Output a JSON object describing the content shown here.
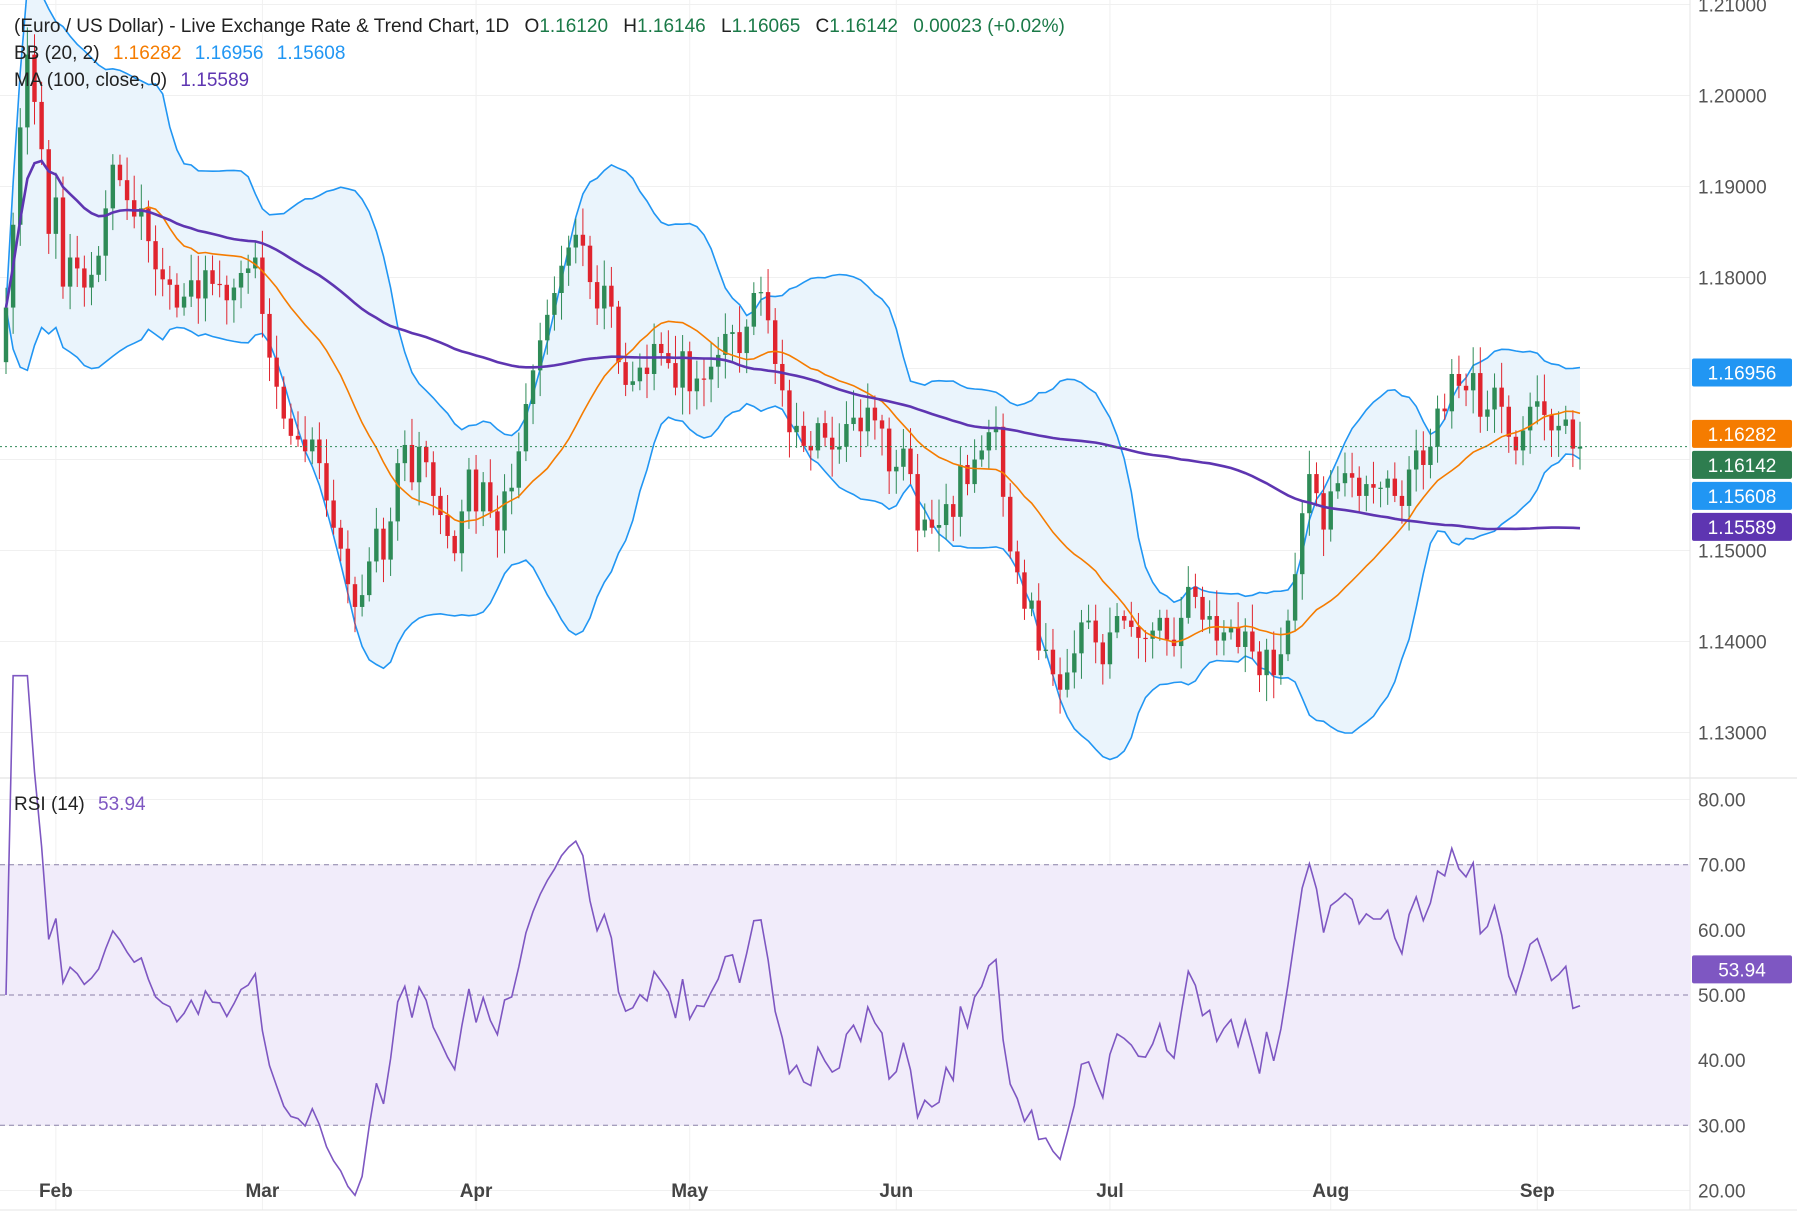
{
  "chart_data": {
    "type": "candlestick",
    "header": {
      "title": "(Euro / US Dollar) - Live Exchange Rate & Trend Chart, 1D",
      "o_label": "O",
      "o_value": "1.16120",
      "h_label": "H",
      "h_value": "1.16146",
      "l_label": "L",
      "l_value": "1.16065",
      "c_label": "C",
      "c_value": "1.16142",
      "change": "0.00023 (+0.02%)"
    },
    "bb_legend": {
      "label": "BB (20, 2)",
      "middle": "1.16282",
      "upper": "1.16956",
      "lower": "1.15608"
    },
    "ma_legend": {
      "label": "MA (100, close, 0)",
      "value": "1.15589"
    },
    "rsi_legend": {
      "label": "RSI (14)",
      "value": "53.94"
    },
    "price_ylim": [
      1.125,
      1.2105
    ],
    "price_ticks": [
      "1.21000",
      "1.20000",
      "1.19000",
      "1.18000",
      "1.17000",
      "1.16000",
      "1.15000",
      "1.14000",
      "1.13000"
    ],
    "price_tick_values": [
      1.21,
      1.2,
      1.19,
      1.18,
      1.17,
      1.16,
      1.15,
      1.14,
      1.13
    ],
    "rsi_ylim": [
      17,
      83
    ],
    "rsi_ticks": [
      "80.00",
      "70.00",
      "60.00",
      "50.00",
      "40.00",
      "30.00",
      "20.00"
    ],
    "rsi_tick_values": [
      80,
      70,
      60,
      50,
      40,
      30,
      20
    ],
    "rsi_band": [
      30,
      70
    ],
    "rsi_dashed_levels": [
      70,
      50,
      30
    ],
    "months": [
      {
        "label": "Feb",
        "index": 7
      },
      {
        "label": "Mar",
        "index": 36
      },
      {
        "label": "Apr",
        "index": 66
      },
      {
        "label": "May",
        "index": 96
      },
      {
        "label": "Jun",
        "index": 125
      },
      {
        "label": "Jul",
        "index": 155
      },
      {
        "label": "Aug",
        "index": 186
      },
      {
        "label": "Sep",
        "index": 215
      }
    ],
    "last_price_line": 1.16142,
    "badges": [
      {
        "text": "1.16956",
        "value": 1.16956,
        "color": "#2196f3"
      },
      {
        "text": "1.16282",
        "value": 1.16282,
        "color": "#f57c00"
      },
      {
        "text": "1.16142",
        "value": 1.16142,
        "color": "#2e7d4f"
      },
      {
        "text": "1.15608",
        "value": 1.15608,
        "color": "#2196f3"
      },
      {
        "text": "1.15589",
        "value": 1.15589,
        "color": "#5e35b1"
      }
    ],
    "rsi_badge": {
      "text": "53.94",
      "value": 53.94,
      "color": "#7e57c2"
    },
    "colors": {
      "up": "#2e8b57",
      "down": "#e0242e",
      "bb_line": "#2196f3",
      "bb_fill": "#eaf4fc",
      "bb_mid": "#f57c00",
      "ma": "#5e35b1",
      "rsi": "#7e57c2",
      "rsi_band": "#f1ecfa",
      "grid": "#f0f0f0",
      "axis_text": "#555555",
      "green_text": "#1b7a48"
    },
    "closes": [
      1.1767,
      1.1858,
      1.1965,
      1.2045,
      1.1993,
      1.1941,
      1.1848,
      1.1888,
      1.179,
      1.1822,
      1.181,
      1.1789,
      1.1803,
      1.1824,
      1.1876,
      1.1924,
      1.1907,
      1.1885,
      1.1867,
      1.1876,
      1.184,
      1.1809,
      1.1798,
      1.1792,
      1.1767,
      1.1779,
      1.1797,
      1.1777,
      1.1808,
      1.1793,
      1.1792,
      1.1775,
      1.1789,
      1.1805,
      1.181,
      1.1822,
      1.176,
      1.1712,
      1.168,
      1.1645,
      1.1626,
      1.1622,
      1.1609,
      1.1622,
      1.1596,
      1.1555,
      1.1525,
      1.1502,
      1.1463,
      1.1438,
      1.1451,
      1.1488,
      1.1524,
      1.149,
      1.1532,
      1.1596,
      1.1616,
      1.1575,
      1.1614,
      1.1597,
      1.156,
      1.1539,
      1.1516,
      1.1497,
      1.1543,
      1.1589,
      1.1543,
      1.1575,
      1.1543,
      1.1522,
      1.1565,
      1.1569,
      1.1609,
      1.1661,
      1.1698,
      1.1731,
      1.1759,
      1.1783,
      1.1813,
      1.1833,
      1.1847,
      1.1835,
      1.1795,
      1.1766,
      1.1791,
      1.1768,
      1.1707,
      1.1682,
      1.1686,
      1.1701,
      1.1694,
      1.1727,
      1.1717,
      1.1706,
      1.1679,
      1.1719,
      1.1675,
      1.1689,
      1.1688,
      1.1702,
      1.1715,
      1.1738,
      1.174,
      1.1717,
      1.1746,
      1.1783,
      1.1784,
      1.1753,
      1.1705,
      1.1676,
      1.163,
      1.1637,
      1.1615,
      1.161,
      1.164,
      1.1624,
      1.1611,
      1.1614,
      1.1639,
      1.1646,
      1.1631,
      1.1657,
      1.1643,
      1.1634,
      1.1587,
      1.1592,
      1.1612,
      1.1584,
      1.1522,
      1.1534,
      1.1525,
      1.1528,
      1.1551,
      1.1537,
      1.1594,
      1.1573,
      1.16,
      1.161,
      1.163,
      1.1636,
      1.1559,
      1.1499,
      1.1476,
      1.1436,
      1.1445,
      1.139,
      1.1391,
      1.1364,
      1.1347,
      1.1366,
      1.1387,
      1.1421,
      1.1423,
      1.1399,
      1.1375,
      1.141,
      1.1428,
      1.1423,
      1.1416,
      1.1404,
      1.1403,
      1.1412,
      1.1426,
      1.1402,
      1.1395,
      1.1426,
      1.146,
      1.1449,
      1.1424,
      1.1428,
      1.1401,
      1.141,
      1.1416,
      1.1394,
      1.1411,
      1.1389,
      1.1363,
      1.1391,
      1.1363,
      1.1386,
      1.1423,
      1.1474,
      1.1541,
      1.1584,
      1.1563,
      1.1523,
      1.1565,
      1.1574,
      1.1585,
      1.158,
      1.156,
      1.1573,
      1.1569,
      1.1569,
      1.1579,
      1.156,
      1.1549,
      1.1589,
      1.161,
      1.1594,
      1.1614,
      1.1656,
      1.1653,
      1.1694,
      1.1681,
      1.1676,
      1.1695,
      1.1647,
      1.1655,
      1.1679,
      1.1658,
      1.1625,
      1.161,
      1.1632,
      1.1658,
      1.1664,
      1.1649,
      1.1632,
      1.1637,
      1.1644,
      1.1612,
      1.1614
    ]
  }
}
